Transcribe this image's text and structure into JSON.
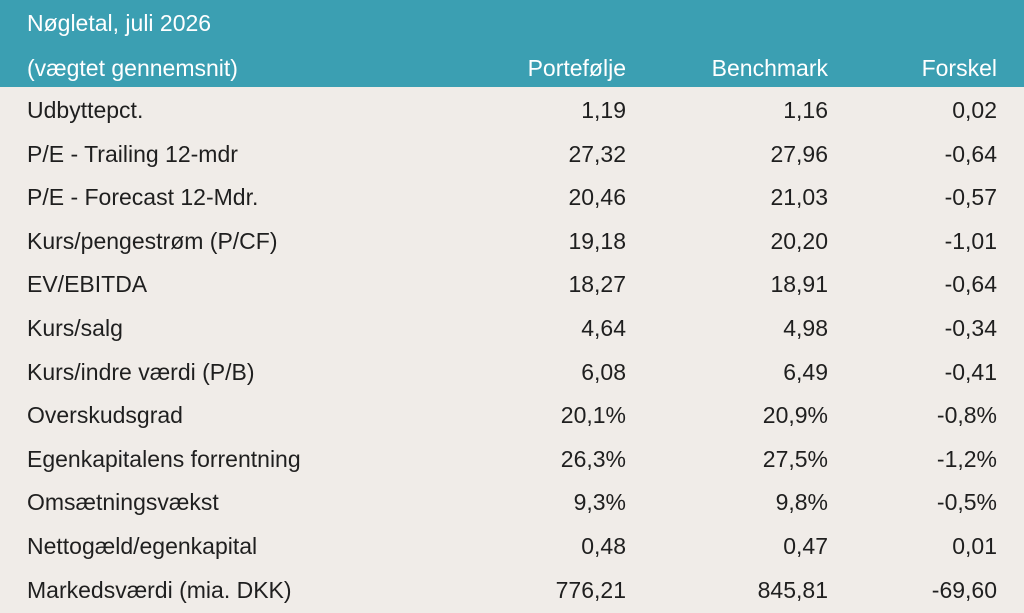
{
  "table": {
    "title": "Nøgletal, juli 2026",
    "subtitle": "(vægtet gennemsnit)",
    "columns": [
      "Portefølje",
      "Benchmark",
      "Forskel"
    ],
    "rows": [
      {
        "label": "Udbyttepct.",
        "portfolio": "1,19",
        "benchmark": "1,16",
        "difference": "0,02"
      },
      {
        "label": "P/E - Trailing 12-mdr",
        "portfolio": "27,32",
        "benchmark": "27,96",
        "difference": "-0,64"
      },
      {
        "label": "P/E - Forecast 12-Mdr.",
        "portfolio": "20,46",
        "benchmark": "21,03",
        "difference": "-0,57"
      },
      {
        "label": "Kurs/pengestrøm (P/CF)",
        "portfolio": "19,18",
        "benchmark": "20,20",
        "difference": "-1,01"
      },
      {
        "label": "EV/EBITDA",
        "portfolio": "18,27",
        "benchmark": "18,91",
        "difference": "-0,64"
      },
      {
        "label": "Kurs/salg",
        "portfolio": "4,64",
        "benchmark": "4,98",
        "difference": "-0,34"
      },
      {
        "label": "Kurs/indre værdi (P/B)",
        "portfolio": "6,08",
        "benchmark": "6,49",
        "difference": "-0,41"
      },
      {
        "label": "Overskudsgrad",
        "portfolio": "20,1%",
        "benchmark": "20,9%",
        "difference": "-0,8%"
      },
      {
        "label": "Egenkapitalens forrentning",
        "portfolio": "26,3%",
        "benchmark": "27,5%",
        "difference": "-1,2%"
      },
      {
        "label": "Omsætningsvækst",
        "portfolio": "9,3%",
        "benchmark": "9,8%",
        "difference": "-0,5%"
      },
      {
        "label": "Nettogæld/egenkapital",
        "portfolio": "0,48",
        "benchmark": "0,47",
        "difference": "0,01"
      },
      {
        "label": "Markedsværdi (mia. DKK)",
        "portfolio": "776,21",
        "benchmark": "845,81",
        "difference": "-69,60"
      }
    ]
  },
  "colors": {
    "header_background": "#3b9fb2",
    "header_text": "#ffffff",
    "body_background": "#f0ece8",
    "body_text": "#1f1f1f"
  }
}
